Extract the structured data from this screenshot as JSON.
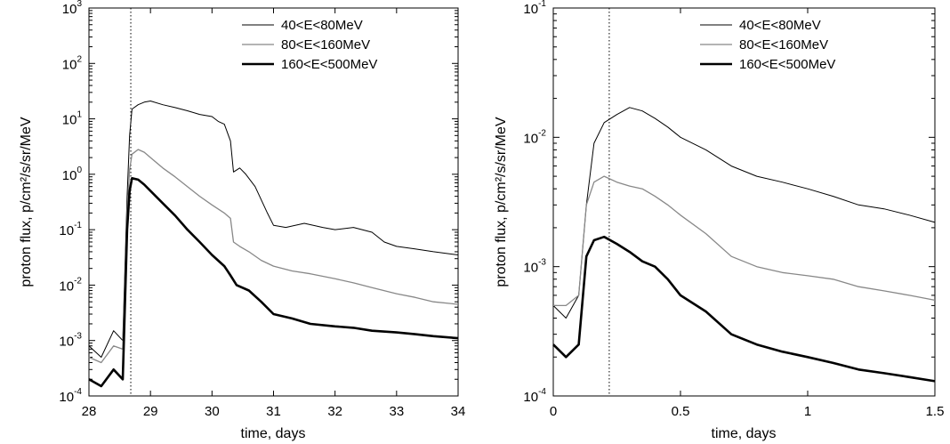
{
  "chart_data": [
    {
      "type": "line",
      "xlabel": "time, days",
      "ylabel": "proton flux, p/cm²/s/sr/MeV",
      "xlim": [
        28,
        34
      ],
      "ylim": [
        0.0001,
        1000
      ],
      "yscale": "log",
      "xticks": [
        "28",
        "29",
        "30",
        "31",
        "32",
        "33",
        "34"
      ],
      "yticks": [
        {
          "base": "10",
          "exp": "-4"
        },
        {
          "base": "10",
          "exp": "-3"
        },
        {
          "base": "10",
          "exp": "-2"
        },
        {
          "base": "10",
          "exp": "-1"
        },
        {
          "base": "10",
          "exp": "0"
        },
        {
          "base": "10",
          "exp": "1"
        },
        {
          "base": "10",
          "exp": "2"
        },
        {
          "base": "10",
          "exp": "3"
        }
      ],
      "vline_x": 28.68,
      "legend_position": "top-right",
      "series": [
        {
          "name": "40<E<80MeV",
          "color": "#000000",
          "x": [
            28.0,
            28.2,
            28.4,
            28.55,
            28.62,
            28.66,
            28.7,
            28.8,
            28.9,
            29.0,
            29.2,
            29.4,
            29.6,
            29.8,
            30.0,
            30.1,
            30.2,
            30.3,
            30.35,
            30.45,
            30.55,
            30.7,
            30.9,
            31.0,
            31.2,
            31.5,
            31.8,
            32.0,
            32.3,
            32.6,
            32.8,
            33.0,
            33.3,
            33.6,
            34.0
          ],
          "y": [
            0.0008,
            0.0005,
            0.0015,
            0.001,
            0.4,
            5,
            15,
            18,
            20,
            21,
            18,
            16,
            14,
            12,
            11,
            9,
            8,
            4,
            1.1,
            1.3,
            1.0,
            0.6,
            0.2,
            0.12,
            0.11,
            0.13,
            0.11,
            0.1,
            0.11,
            0.09,
            0.06,
            0.05,
            0.045,
            0.04,
            0.035
          ]
        },
        {
          "name": "80<E<160MeV",
          "color": "#888888",
          "x": [
            28.0,
            28.2,
            28.4,
            28.55,
            28.62,
            28.66,
            28.7,
            28.8,
            28.9,
            29.0,
            29.2,
            29.4,
            29.6,
            29.8,
            30.0,
            30.2,
            30.3,
            30.35,
            30.45,
            30.6,
            30.8,
            31.0,
            31.3,
            31.6,
            32.0,
            32.3,
            32.6,
            33.0,
            33.3,
            33.6,
            34.0
          ],
          "y": [
            0.0005,
            0.0004,
            0.0008,
            0.0007,
            0.2,
            1.2,
            2.3,
            2.8,
            2.5,
            2.0,
            1.3,
            0.9,
            0.6,
            0.4,
            0.28,
            0.2,
            0.16,
            0.06,
            0.05,
            0.04,
            0.028,
            0.022,
            0.018,
            0.016,
            0.013,
            0.011,
            0.009,
            0.007,
            0.006,
            0.005,
            0.0045
          ]
        },
        {
          "name": "160<E<500MeV",
          "color": "#000000",
          "x": [
            28.0,
            28.2,
            28.4,
            28.55,
            28.62,
            28.66,
            28.7,
            28.8,
            28.9,
            29.0,
            29.2,
            29.4,
            29.6,
            29.8,
            30.0,
            30.2,
            30.3,
            30.4,
            30.6,
            30.8,
            31.0,
            31.3,
            31.6,
            32.0,
            32.3,
            32.6,
            33.0,
            33.3,
            33.6,
            34.0
          ],
          "y": [
            0.0002,
            0.00015,
            0.0003,
            0.0002,
            0.1,
            0.5,
            0.85,
            0.8,
            0.65,
            0.5,
            0.3,
            0.18,
            0.1,
            0.06,
            0.035,
            0.022,
            0.015,
            0.01,
            0.008,
            0.005,
            0.003,
            0.0025,
            0.002,
            0.0018,
            0.0017,
            0.0015,
            0.0014,
            0.0013,
            0.0012,
            0.0011
          ]
        }
      ]
    },
    {
      "type": "line",
      "xlabel": "time, days",
      "ylabel": "proton flux, p/cm²/s/sr/MeV",
      "xlim": [
        0,
        1.5
      ],
      "ylim": [
        0.0001,
        0.1
      ],
      "yscale": "log",
      "xticks": [
        "0",
        "0.5",
        "1",
        "1.5"
      ],
      "yticks": [
        {
          "base": "10",
          "exp": "-4"
        },
        {
          "base": "10",
          "exp": "-3"
        },
        {
          "base": "10",
          "exp": "-2"
        },
        {
          "base": "10",
          "exp": "-1"
        }
      ],
      "vline_x": 0.22,
      "legend_position": "top-right",
      "series": [
        {
          "name": "40<E<80MeV",
          "color": "#000000",
          "x": [
            0.0,
            0.05,
            0.1,
            0.13,
            0.16,
            0.2,
            0.25,
            0.3,
            0.35,
            0.4,
            0.45,
            0.5,
            0.6,
            0.7,
            0.8,
            0.9,
            1.0,
            1.1,
            1.2,
            1.3,
            1.4,
            1.5
          ],
          "y": [
            0.0005,
            0.0004,
            0.0006,
            0.003,
            0.009,
            0.013,
            0.015,
            0.017,
            0.016,
            0.014,
            0.012,
            0.01,
            0.008,
            0.006,
            0.005,
            0.0045,
            0.004,
            0.0035,
            0.003,
            0.0028,
            0.0025,
            0.0022
          ]
        },
        {
          "name": "80<E<160MeV",
          "color": "#888888",
          "x": [
            0.0,
            0.05,
            0.1,
            0.13,
            0.16,
            0.2,
            0.25,
            0.3,
            0.35,
            0.4,
            0.45,
            0.5,
            0.6,
            0.7,
            0.8,
            0.9,
            1.0,
            1.1,
            1.2,
            1.3,
            1.4,
            1.5
          ],
          "y": [
            0.0005,
            0.0005,
            0.0006,
            0.003,
            0.0045,
            0.005,
            0.0045,
            0.0042,
            0.004,
            0.0035,
            0.003,
            0.0025,
            0.0018,
            0.0012,
            0.001,
            0.0009,
            0.00085,
            0.0008,
            0.0007,
            0.00065,
            0.0006,
            0.00055
          ]
        },
        {
          "name": "160<E<500MeV",
          "color": "#000000",
          "x": [
            0.0,
            0.05,
            0.1,
            0.13,
            0.16,
            0.2,
            0.25,
            0.3,
            0.35,
            0.4,
            0.45,
            0.5,
            0.6,
            0.7,
            0.8,
            0.9,
            1.0,
            1.1,
            1.2,
            1.3,
            1.4,
            1.5
          ],
          "y": [
            0.00025,
            0.0002,
            0.00025,
            0.0012,
            0.0016,
            0.0017,
            0.0015,
            0.0013,
            0.0011,
            0.001,
            0.0008,
            0.0006,
            0.00045,
            0.0003,
            0.00025,
            0.00022,
            0.0002,
            0.00018,
            0.00016,
            0.00015,
            0.00014,
            0.00013
          ]
        }
      ]
    }
  ]
}
